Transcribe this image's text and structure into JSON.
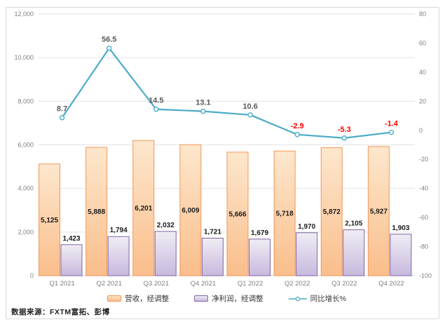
{
  "source_note": "数据来源：FXTM富拓、彭博",
  "colors": {
    "revenue_bar_border": "#F0975A",
    "revenue_bar_gradient_top": "#FDE7CD",
    "revenue_bar_gradient_bottom": "#FABE8B",
    "profit_bar_border": "#8064A2",
    "profit_bar_gradient_top": "#F0EDF5",
    "profit_bar_gradient_bottom": "#C7B9DD",
    "growth_line": "#4BACC6",
    "positive_label": "#595959",
    "negative_label": "#FF0000",
    "bar_value_label": "#1a1a1a",
    "axis_label": "#7f7f7f",
    "gridline": "#e2e2e2",
    "axis_line": "#d3d3d3"
  },
  "chart_data": {
    "type": "bar",
    "subtype": "combo-bar-line",
    "title": "",
    "categories": [
      "Q1 2021",
      "Q2 2021",
      "Q3 2021",
      "Q4 2021",
      "Q1 2022",
      "Q2 2022",
      "Q3 2022",
      "Q4 2022"
    ],
    "series": [
      {
        "name": "营收，经调整",
        "type": "bar",
        "axis": "left",
        "values": [
          5125,
          5888,
          6201,
          6009,
          5666,
          5718,
          5872,
          5927
        ],
        "value_labels": [
          "5,125",
          "5,888",
          "6,201",
          "6,009",
          "5,666",
          "5,718",
          "5,872",
          "5,927"
        ]
      },
      {
        "name": "净利润，经调整",
        "type": "bar",
        "axis": "left",
        "values": [
          1423,
          1794,
          2032,
          1721,
          1679,
          1970,
          2105,
          1903
        ],
        "value_labels": [
          "1,423",
          "1,794",
          "2,032",
          "1,721",
          "1,679",
          "1,970",
          "2,105",
          "1,903"
        ]
      },
      {
        "name": "同比增长%",
        "type": "line",
        "axis": "right",
        "values": [
          8.7,
          56.5,
          14.5,
          13.1,
          10.6,
          -2.9,
          -5.3,
          -1.4
        ],
        "value_labels": [
          "8.7",
          "56.5",
          "14.5",
          "13.1",
          "10.6",
          "-2.9",
          "-5.3",
          "-1.4"
        ]
      }
    ],
    "left_axis": {
      "min": 0,
      "max": 12000,
      "step": 2000,
      "tick_labels": [
        "0",
        "2,000",
        "4,000",
        "6,000",
        "8,000",
        "10,000",
        "12,000"
      ]
    },
    "right_axis": {
      "min": -100,
      "max": 80,
      "step": 20,
      "tick_labels": [
        "-100",
        "-80",
        "-60",
        "-40",
        "-20",
        "0",
        "20",
        "40",
        "60",
        "80"
      ]
    },
    "grid": "horizontal",
    "legend_position": "bottom"
  }
}
